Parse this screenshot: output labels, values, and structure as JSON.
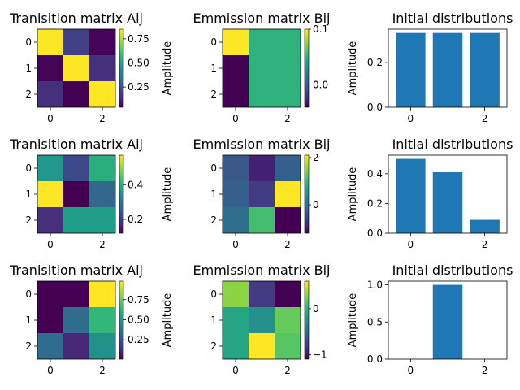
{
  "colors": {
    "bar": "#1f77b4",
    "viridis": [
      "#440154",
      "#482878",
      "#3e4989",
      "#31688e",
      "#26828e",
      "#1f9e89",
      "#35b779",
      "#6ece58",
      "#b5de2b",
      "#fde725"
    ]
  },
  "chart_data": [
    {
      "type": "heatmap",
      "title": "Tranisition matrix Aij",
      "colorbar_label": "Amplitude",
      "x_ticks": [
        "0",
        "2"
      ],
      "y_ticks": [
        "0",
        "1",
        "2"
      ],
      "values": [
        [
          0.85,
          0.2,
          0.05
        ],
        [
          0.05,
          0.85,
          0.15
        ],
        [
          0.15,
          0.04,
          0.85
        ]
      ],
      "vmin": 0.04,
      "vmax": 0.85,
      "colorbar_ticks": [
        0.25,
        0.5,
        0.75
      ],
      "colorbar_tick_labels": [
        "0.25",
        "0.50",
        "0.75"
      ]
    },
    {
      "type": "heatmap",
      "title": "Emmission matrix Bij",
      "colorbar_label": "Amplitude",
      "x_ticks": [
        "0",
        "2"
      ],
      "y_ticks": [
        "0",
        "1",
        "2"
      ],
      "values": [
        [
          0.1,
          0.05,
          0.05
        ],
        [
          -0.04,
          0.05,
          0.05
        ],
        [
          -0.04,
          0.05,
          0.05
        ]
      ],
      "vmin": -0.04,
      "vmax": 0.1,
      "colorbar_ticks": [
        0.0,
        0.1
      ],
      "colorbar_tick_labels": [
        "0.0",
        "0.1"
      ]
    },
    {
      "type": "bar",
      "title": "Initial distributions",
      "x": [
        0,
        1,
        2
      ],
      "values": [
        0.333,
        0.333,
        0.333
      ],
      "x_ticks": [
        "0",
        "2"
      ],
      "ylim": [
        0,
        0.35
      ],
      "y_ticks": [
        0.0,
        0.2
      ],
      "y_tick_labels": [
        "0.0",
        "0.2"
      ]
    },
    {
      "type": "heatmap",
      "title": "Tranisition matrix Aij",
      "colorbar_label": "Amplitude",
      "x_ticks": [
        "0",
        "2"
      ],
      "y_ticks": [
        "0",
        "1",
        "2"
      ],
      "values": [
        [
          0.36,
          0.22,
          0.4
        ],
        [
          0.57,
          0.12,
          0.27
        ],
        [
          0.18,
          0.37,
          0.37
        ]
      ],
      "vmin": 0.12,
      "vmax": 0.57,
      "colorbar_ticks": [
        0.2,
        0.4
      ],
      "colorbar_tick_labels": [
        "0.2",
        "0.4"
      ]
    },
    {
      "type": "heatmap",
      "title": "Emmission matrix Bij",
      "colorbar_label": "Amplitude",
      "x_ticks": [
        "0",
        "2"
      ],
      "y_ticks": [
        "0",
        "1",
        "2"
      ],
      "values": [
        [
          -0.3,
          -0.9,
          -0.2
        ],
        [
          -0.2,
          -0.6,
          2.1
        ],
        [
          0.0,
          1.1,
          -1.2
        ]
      ],
      "vmin": -1.2,
      "vmax": 2.1,
      "colorbar_ticks": [
        0,
        2
      ],
      "colorbar_tick_labels": [
        "0",
        "2"
      ]
    },
    {
      "type": "bar",
      "title": "Initial distributions",
      "x": [
        0,
        1,
        2
      ],
      "values": [
        0.5,
        0.41,
        0.09
      ],
      "x_ticks": [
        "0",
        "2"
      ],
      "ylim": [
        0,
        0.525
      ],
      "y_ticks": [
        0.0,
        0.2,
        0.4
      ],
      "y_tick_labels": [
        "0.0",
        "0.2",
        "0.4"
      ]
    },
    {
      "type": "heatmap",
      "title": "Tranisition matrix Aij",
      "colorbar_label": "Amplitude",
      "x_ticks": [
        "0",
        "2"
      ],
      "y_ticks": [
        "0",
        "1",
        "2"
      ],
      "values": [
        [
          0.01,
          0.01,
          0.98
        ],
        [
          0.01,
          0.35,
          0.65
        ],
        [
          0.35,
          0.12,
          0.5
        ]
      ],
      "vmin": 0.01,
      "vmax": 0.98,
      "colorbar_ticks": [
        0.25,
        0.5,
        0.75
      ],
      "colorbar_tick_labels": [
        "0.25",
        "0.50",
        "0.75"
      ]
    },
    {
      "type": "heatmap",
      "title": "Emmission matrix Bij",
      "colorbar_label": "Amplitude",
      "x_ticks": [
        "0",
        "2"
      ],
      "y_ticks": [
        "0",
        "1",
        "2"
      ],
      "values": [
        [
          0.3,
          -0.8,
          -1.1
        ],
        [
          -0.1,
          -0.25,
          0.2
        ],
        [
          -0.1,
          0.6,
          0.15
        ]
      ],
      "vmin": -1.1,
      "vmax": 0.6,
      "colorbar_ticks": [
        -1,
        0
      ],
      "colorbar_tick_labels": [
        "−1",
        "0"
      ]
    },
    {
      "type": "bar",
      "title": "Initial distributions",
      "x": [
        0,
        1,
        2
      ],
      "values": [
        0.0,
        1.0,
        0.0
      ],
      "x_ticks": [
        "0",
        "2"
      ],
      "ylim": [
        0,
        1.05
      ],
      "y_ticks": [
        0.0,
        0.5,
        1.0
      ],
      "y_tick_labels": [
        "0.0",
        "0.5",
        "1.0"
      ]
    }
  ]
}
